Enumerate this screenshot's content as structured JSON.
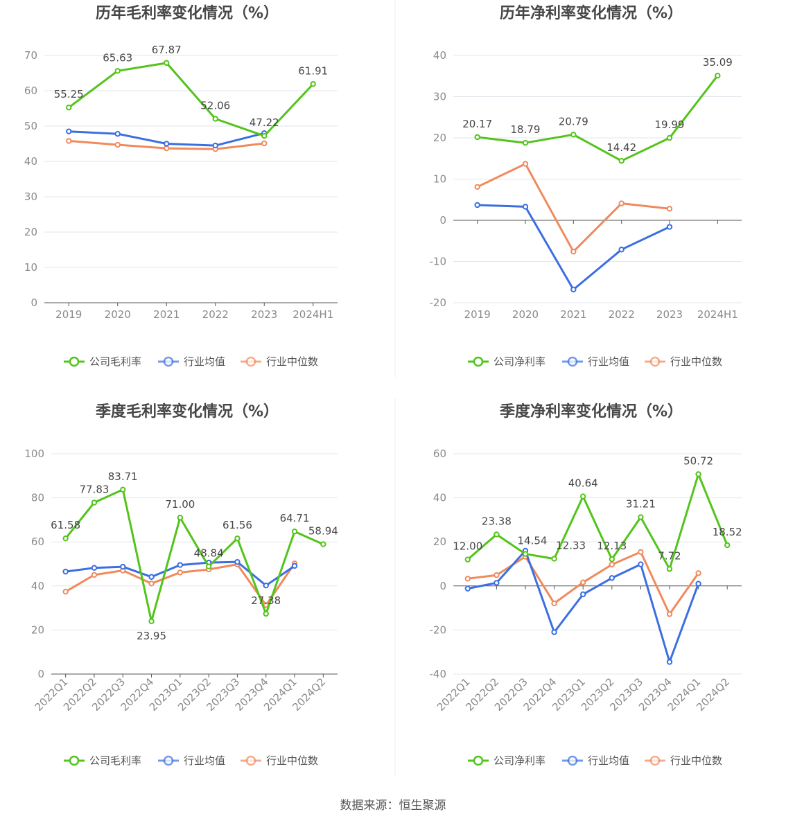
{
  "colors": {
    "company": "#52c41a",
    "avg": "#3b6fe0",
    "median": "#f08a5d",
    "grid": "#e3e6ee",
    "axis": "#555555"
  },
  "source": "数据来源：恒生聚源",
  "chart_data": [
    {
      "type": "line",
      "title": "历年毛利率变化情况（%）",
      "categories": [
        "2019",
        "2020",
        "2021",
        "2022",
        "2023",
        "2024H1"
      ],
      "ylim": [
        0,
        70
      ],
      "yticks": [
        0,
        10,
        20,
        30,
        40,
        50,
        60,
        70
      ],
      "series": [
        {
          "name": "公司毛利率",
          "key": "company",
          "values": [
            55.25,
            65.63,
            67.87,
            52.06,
            47.22,
            61.91
          ],
          "labels": [
            "55.25",
            "65.63",
            "67.87",
            "52.06",
            "47.22",
            "61.91"
          ]
        },
        {
          "name": "行业均值",
          "key": "avg",
          "values": [
            48.5,
            47.8,
            45.0,
            44.5,
            48.0,
            null
          ]
        },
        {
          "name": "行业中位数",
          "key": "median",
          "values": [
            45.8,
            44.7,
            43.7,
            43.5,
            45.1,
            null
          ]
        }
      ],
      "grid": true,
      "legend": "bottom"
    },
    {
      "type": "line",
      "title": "历年净利率变化情况（%）",
      "categories": [
        "2019",
        "2020",
        "2021",
        "2022",
        "2023",
        "2024H1"
      ],
      "ylim": [
        -20,
        40
      ],
      "yticks": [
        -20,
        -10,
        0,
        10,
        20,
        30,
        40
      ],
      "series": [
        {
          "name": "公司净利率",
          "key": "company",
          "values": [
            20.17,
            18.79,
            20.79,
            14.42,
            19.99,
            35.09
          ],
          "labels": [
            "20.17",
            "18.79",
            "20.79",
            "14.42",
            "19.99",
            "35.09"
          ]
        },
        {
          "name": "行业均值",
          "key": "avg",
          "values": [
            3.7,
            3.3,
            -16.8,
            -7.1,
            -1.6,
            null
          ]
        },
        {
          "name": "行业中位数",
          "key": "median",
          "values": [
            8.1,
            13.7,
            -7.6,
            4.1,
            2.8,
            null
          ]
        }
      ],
      "grid": true,
      "legend": "bottom"
    },
    {
      "type": "line",
      "title": "季度毛利率变化情况（%）",
      "categories": [
        "2022Q1",
        "2022Q2",
        "2022Q3",
        "2022Q4",
        "2023Q1",
        "2023Q2",
        "2023Q3",
        "2023Q4",
        "2024Q1",
        "2024Q2"
      ],
      "ylim": [
        0,
        100
      ],
      "yticks": [
        0,
        20,
        40,
        60,
        80,
        100
      ],
      "series": [
        {
          "name": "公司毛利率",
          "key": "company",
          "values": [
            61.58,
            77.83,
            83.71,
            23.95,
            71.0,
            48.84,
            61.56,
            27.38,
            64.71,
            58.94
          ],
          "labels": [
            "61.58",
            "77.83",
            "83.71",
            "23.95",
            "71.00",
            "48.84",
            "61.56",
            "27.38",
            "64.71",
            "58.94"
          ]
        },
        {
          "name": "行业均值",
          "key": "avg",
          "values": [
            46.5,
            48.2,
            48.7,
            44.1,
            49.5,
            50.6,
            50.9,
            40.2,
            49.1,
            null
          ]
        },
        {
          "name": "行业中位数",
          "key": "median",
          "values": [
            37.4,
            45.0,
            47.0,
            41.1,
            46.1,
            47.5,
            49.8,
            31.3,
            50.2,
            null
          ]
        }
      ],
      "grid": true,
      "legend": "bottom"
    },
    {
      "type": "line",
      "title": "季度净利率变化情况（%）",
      "categories": [
        "2022Q1",
        "2022Q2",
        "2022Q3",
        "2022Q4",
        "2023Q1",
        "2023Q2",
        "2023Q3",
        "2023Q4",
        "2024Q1",
        "2024Q2"
      ],
      "ylim": [
        -40,
        60
      ],
      "yticks": [
        -40,
        -20,
        0,
        20,
        40,
        60
      ],
      "series": [
        {
          "name": "公司净利率",
          "key": "company",
          "values": [
            12.0,
            23.38,
            14.54,
            12.33,
            40.64,
            12.13,
            31.21,
            7.72,
            50.72,
            18.52
          ],
          "labels": [
            "12.00",
            "23.38",
            "14.54",
            "12.33",
            "40.64",
            "12.13",
            "31.21",
            "7.72",
            "50.72",
            "18.52"
          ]
        },
        {
          "name": "行业均值",
          "key": "avg",
          "values": [
            -1.2,
            1.4,
            16.0,
            -21.0,
            -3.8,
            3.6,
            9.8,
            -34.5,
            1.0,
            null
          ]
        },
        {
          "name": "行业中位数",
          "key": "median",
          "values": [
            3.3,
            4.9,
            13.3,
            -7.9,
            1.6,
            9.7,
            15.4,
            -12.8,
            5.8,
            null
          ]
        }
      ],
      "grid": true,
      "legend": "bottom"
    }
  ]
}
